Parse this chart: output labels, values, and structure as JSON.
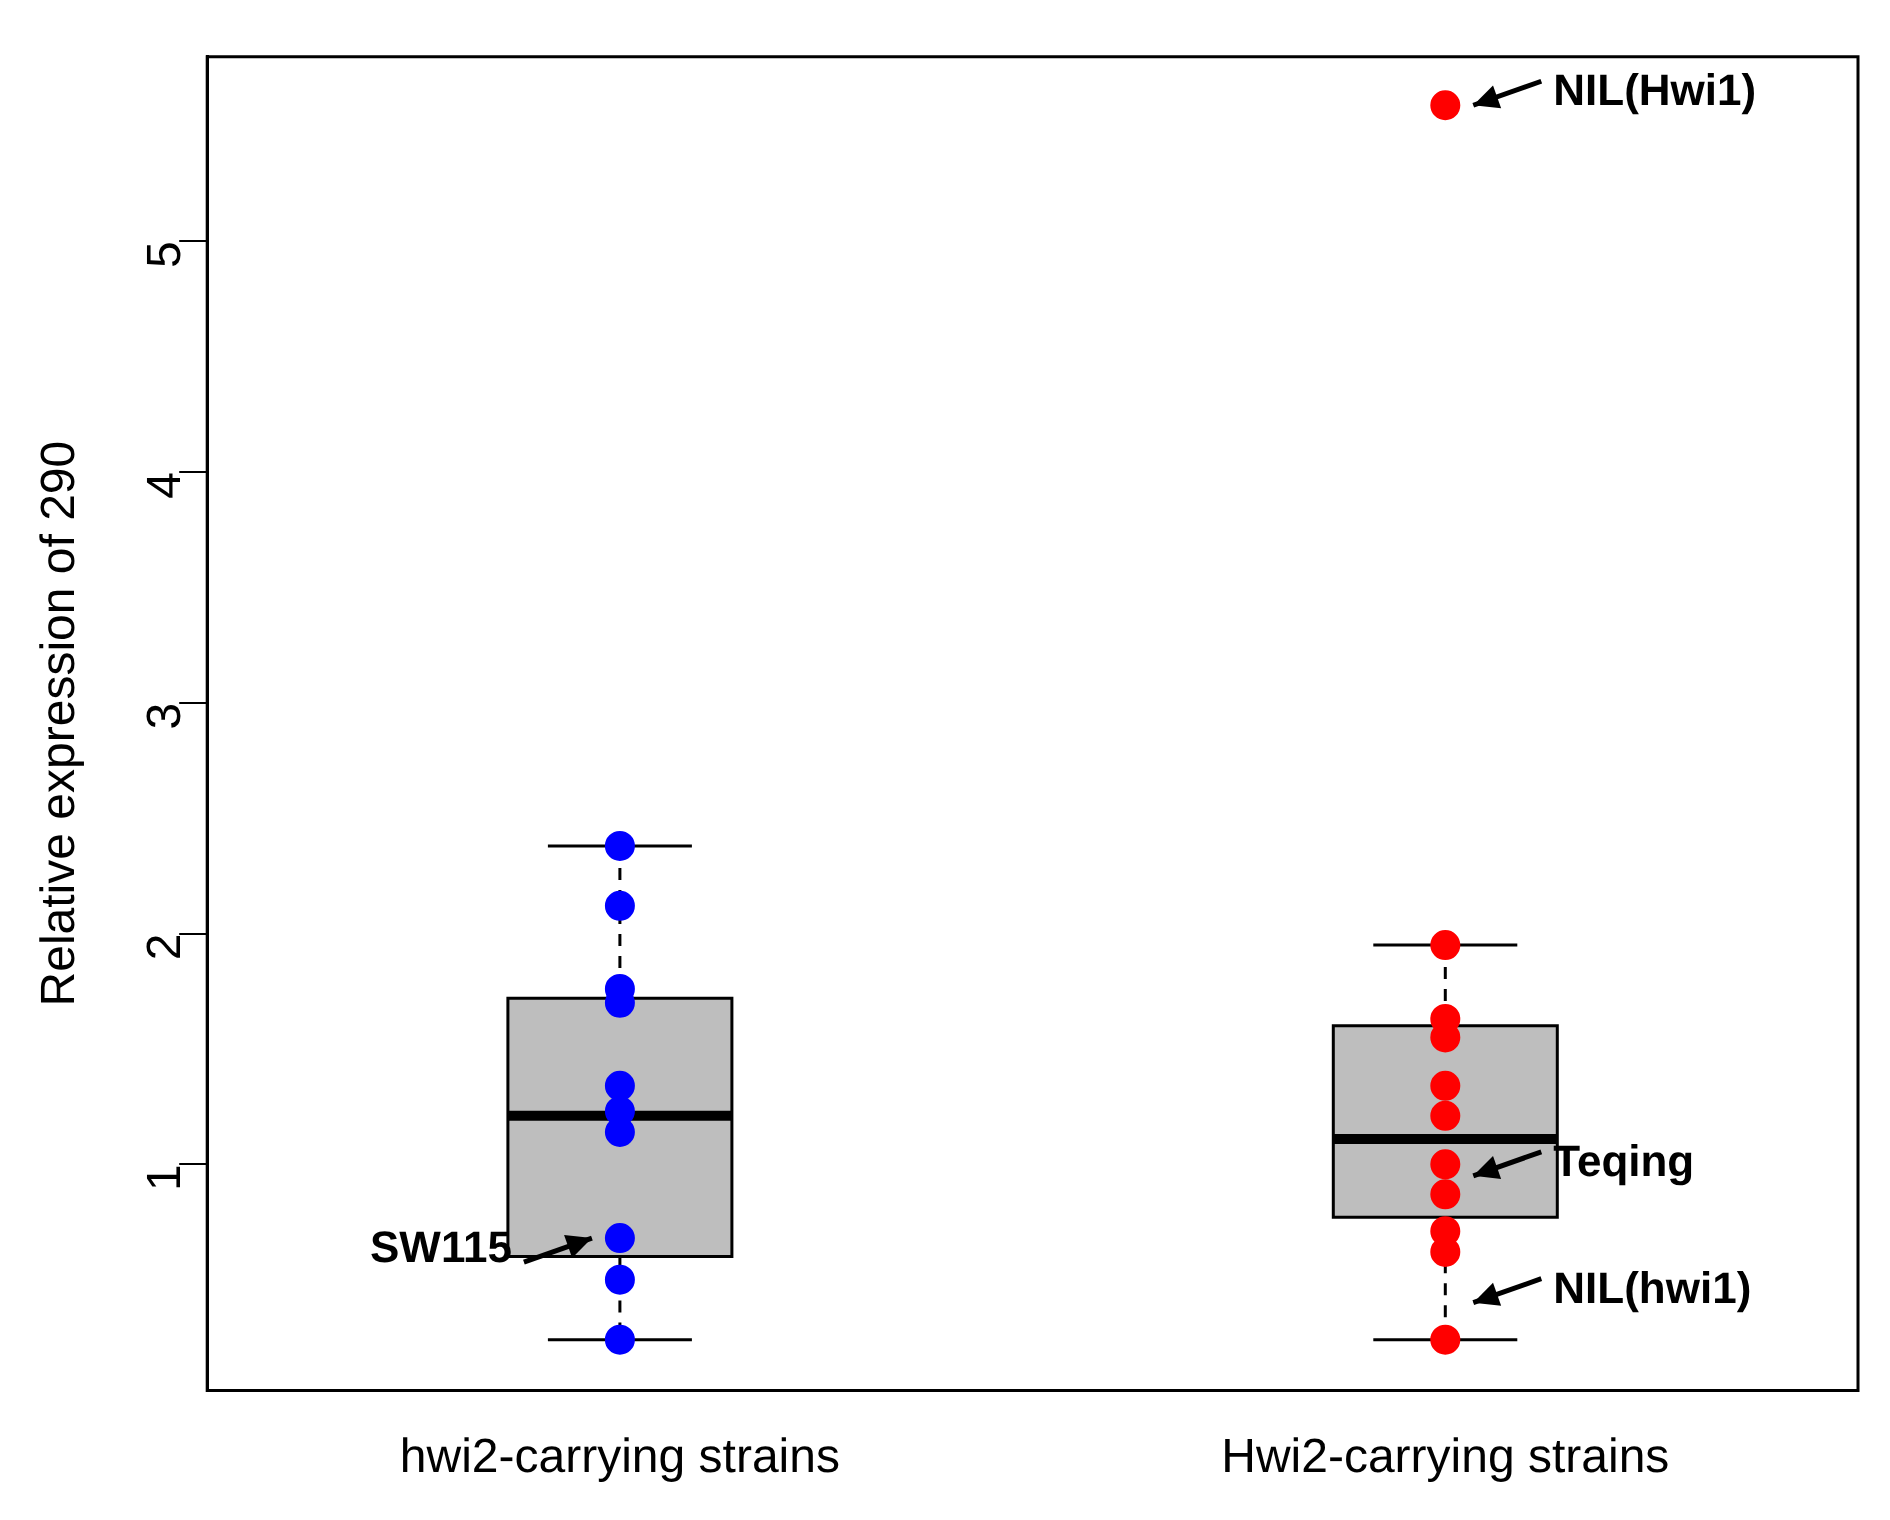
{
  "chart_data": {
    "type": "box",
    "ylabel": "Relative expression of 290",
    "categories": [
      "hwi2-carrying strains",
      "Hwi2-carrying strains"
    ],
    "boxes": [
      {
        "low": 0.24,
        "q1": 0.6,
        "median": 1.21,
        "q3": 1.72,
        "high": 2.38
      },
      {
        "low": 0.24,
        "q1": 0.77,
        "median": 1.11,
        "q3": 1.6,
        "high": 1.95
      }
    ],
    "series": [
      {
        "type": "scatter",
        "color": "#0000ff",
        "x": [
          "hwi2-carrying strains",
          "hwi2-carrying strains",
          "hwi2-carrying strains",
          "hwi2-carrying strains",
          "hwi2-carrying strains",
          "hwi2-carrying strains",
          "hwi2-carrying strains",
          "hwi2-carrying strains",
          "hwi2-carrying strains",
          "hwi2-carrying strains"
        ],
        "values": [
          2.38,
          2.12,
          1.76,
          1.7,
          1.34,
          1.23,
          1.14,
          0.68,
          0.5,
          0.24
        ]
      },
      {
        "type": "scatter",
        "color": "#ff0000",
        "x": [
          "Hwi2-carrying strains",
          "Hwi2-carrying strains",
          "Hwi2-carrying strains",
          "Hwi2-carrying strains",
          "Hwi2-carrying strains",
          "Hwi2-carrying strains",
          "Hwi2-carrying strains",
          "Hwi2-carrying strains",
          "Hwi2-carrying strains",
          "Hwi2-carrying strains",
          "Hwi2-carrying strains"
        ],
        "values": [
          5.59,
          1.95,
          1.63,
          1.55,
          1.34,
          1.21,
          1.0,
          0.87,
          0.71,
          0.62,
          0.24
        ]
      }
    ],
    "marker": "circle",
    "ylim": [
      0.02,
      5.8
    ],
    "yticks": [
      1,
      2,
      3,
      4,
      5
    ],
    "annotations": [
      {
        "text": "SW115",
        "x": "hwi2-carrying strains",
        "y": 0.68
      },
      {
        "text": "Teqing",
        "x": "Hwi2-carrying strains",
        "y": 0.95
      },
      {
        "text": "NIL(hwi1)",
        "x": "Hwi2-carrying strains",
        "y": 0.4
      },
      {
        "text": "NIL(Hwi1)",
        "x": "Hwi2-carrying strains",
        "y": 5.59
      }
    ]
  }
}
